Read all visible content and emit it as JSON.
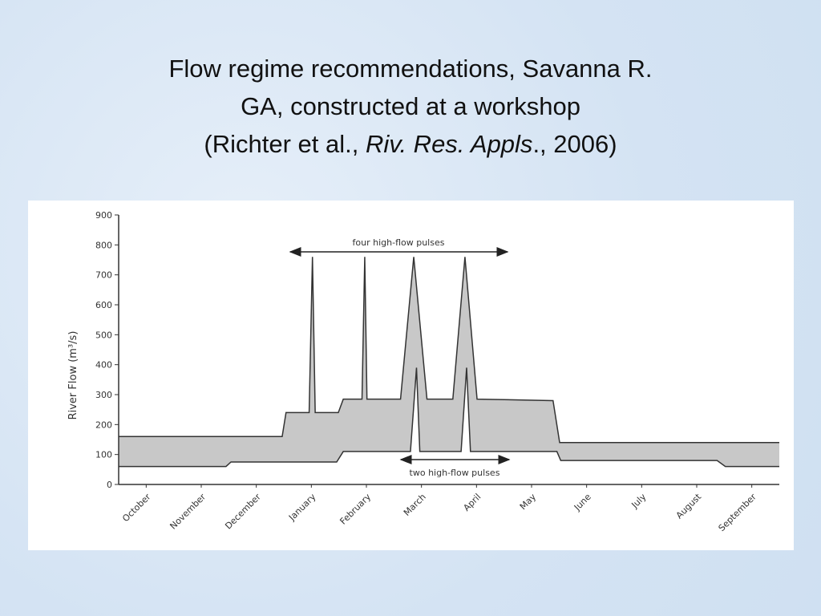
{
  "slide_title": {
    "line1": "Flow regime recommendations, Savanna R.",
    "line2": "GA, constructed at a workshop",
    "line3_start": "(Richter et al., ",
    "line3_italic": "Riv. Res. Appls",
    "line3_end": "., 2006)"
  },
  "chart_data": {
    "type": "band",
    "y_label": "River Flow (m³/s)",
    "xlim": [
      0,
      12
    ],
    "xticks": [
      {
        "value": 0.5,
        "label": "October"
      },
      {
        "value": 1.5,
        "label": "November"
      },
      {
        "value": 2.5,
        "label": "December"
      },
      {
        "value": 3.5,
        "label": "January"
      },
      {
        "value": 4.5,
        "label": "February"
      },
      {
        "value": 5.5,
        "label": "March"
      },
      {
        "value": 6.5,
        "label": "April"
      },
      {
        "value": 7.5,
        "label": "May"
      },
      {
        "value": 8.5,
        "label": "June"
      },
      {
        "value": 9.5,
        "label": "July"
      },
      {
        "value": 10.5,
        "label": "August"
      },
      {
        "value": 11.5,
        "label": "September"
      }
    ],
    "ylim": [
      0,
      900
    ],
    "yticks": [
      0,
      100,
      200,
      300,
      400,
      500,
      600,
      700,
      800,
      900
    ],
    "fill_color": "#c8c8c8",
    "line_color": "#333333",
    "series": [
      {
        "x": [
          0,
          2.97,
          3.04,
          3.46,
          3.52,
          3.57,
          3.99,
          4.08,
          4.42,
          4.47,
          4.51,
          5.12,
          5.36,
          5.6,
          6.07,
          6.29,
          6.51,
          7.89,
          8.01,
          12
        ],
        "values": [
          160,
          160,
          240,
          240,
          760,
          240,
          240,
          285,
          285,
          760,
          285,
          285,
          760,
          285,
          285,
          760,
          285,
          280,
          140,
          140
        ]
      },
      {
        "x": [
          0,
          1.95,
          2.04,
          3.96,
          4.08,
          5.3,
          5.41,
          5.47,
          6.22,
          6.32,
          6.39,
          7.96,
          8.03,
          10.87,
          11.02,
          12
        ],
        "values": [
          60,
          60,
          75,
          75,
          110,
          110,
          390,
          110,
          110,
          390,
          110,
          110,
          80,
          80,
          60,
          60
        ]
      }
    ],
    "annotations": [
      "four high-flow pulses",
      "two high-flow pulses"
    ]
  }
}
